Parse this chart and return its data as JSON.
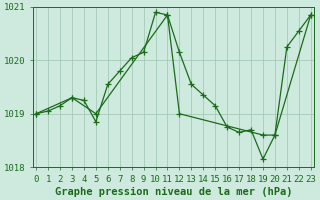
{
  "series1_x": [
    0,
    1,
    2,
    3,
    4,
    5,
    6,
    7,
    8,
    9,
    10,
    11,
    12,
    13,
    14,
    15,
    16,
    17,
    18,
    19,
    20,
    21,
    22,
    23
  ],
  "series1_y": [
    1019.0,
    1019.05,
    1019.15,
    1019.3,
    1019.25,
    1018.85,
    1019.55,
    1019.8,
    1020.05,
    1020.15,
    1020.9,
    1020.85,
    1020.15,
    1019.55,
    1019.35,
    1019.15,
    1018.75,
    1018.65,
    1018.7,
    1018.15,
    1018.6,
    1020.25,
    1020.55,
    1020.85
  ],
  "series2_x": [
    0,
    3,
    5,
    11,
    12,
    19,
    20,
    23
  ],
  "series2_y": [
    1019.0,
    1019.3,
    1019.0,
    1020.85,
    1019.0,
    1018.6,
    1018.6,
    1020.85
  ],
  "line_color": "#1a6b1a",
  "marker": "+",
  "marker_size": 4,
  "bg_color": "#ceeade",
  "grid_color": "#9ec4b0",
  "axis_color": "#1a6b1a",
  "label_color": "#1a6b1a",
  "title": "Graphe pression niveau de la mer (hPa)",
  "xlim_min": -0.3,
  "xlim_max": 23.3,
  "ylim": [
    1018.0,
    1021.0
  ],
  "yticks": [
    1018,
    1019,
    1020,
    1021
  ],
  "xticks": [
    0,
    1,
    2,
    3,
    4,
    5,
    6,
    7,
    8,
    9,
    10,
    11,
    12,
    13,
    14,
    15,
    16,
    17,
    18,
    19,
    20,
    21,
    22,
    23
  ],
  "title_fontsize": 7.5,
  "tick_fontsize": 6.5
}
